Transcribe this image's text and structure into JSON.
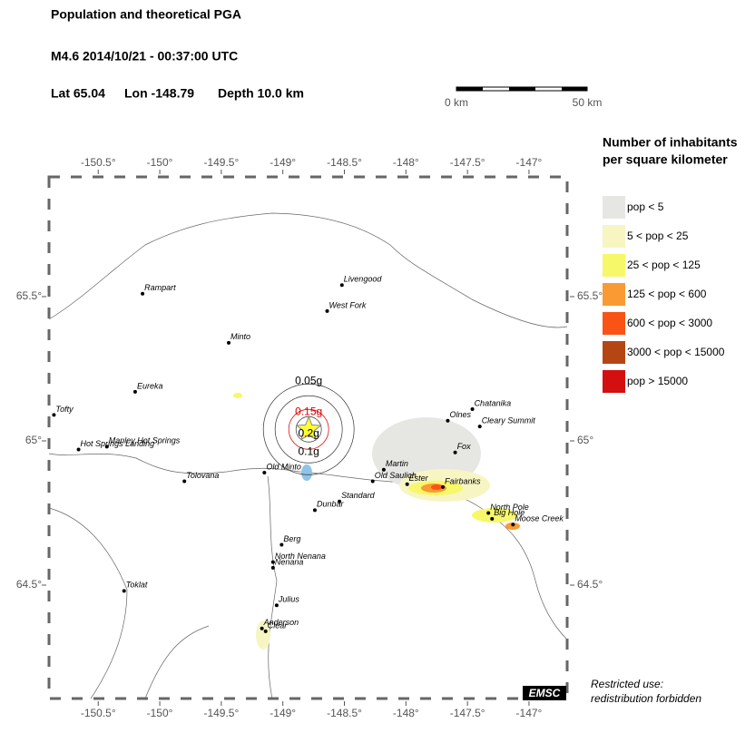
{
  "header": {
    "title": "Population and theoretical PGA",
    "event": "M4.6  2014/10/21 - 00:37:00 UTC",
    "lat": "Lat 65.04",
    "lon": "Lon -148.79",
    "depth": "Depth  10.0 km"
  },
  "scalebar": {
    "start": "0 km",
    "end": "50 km"
  },
  "map": {
    "xlim": [
      -150.9,
      -146.69
    ],
    "ylim": [
      64.107,
      65.915
    ],
    "xticks": [
      {
        "value": -150.5,
        "label": "-150.5°"
      },
      {
        "value": -150,
        "label": "-150°"
      },
      {
        "value": -149.5,
        "label": "-149.5°"
      },
      {
        "value": -149,
        "label": "-149°"
      },
      {
        "value": -148.5,
        "label": "-148.5°"
      },
      {
        "value": -148,
        "label": "-148°"
      },
      {
        "value": -147.5,
        "label": "-147.5°"
      },
      {
        "value": -147,
        "label": "-147°"
      }
    ],
    "yticks": [
      {
        "value": 65.5,
        "label": "65.5°"
      },
      {
        "value": 65,
        "label": "65°"
      },
      {
        "value": 64.5,
        "label": "64.5°"
      }
    ],
    "epicenter": {
      "lon": -148.79,
      "lat": 65.04
    },
    "pga_labels": [
      "0.05g",
      "0.15g",
      "0.2g",
      "0.1g"
    ],
    "towns": [
      {
        "name": "Rampart",
        "lon": -150.14,
        "lat": 65.51
      },
      {
        "name": "Livengood",
        "lon": -148.52,
        "lat": 65.54
      },
      {
        "name": "West Fork",
        "lon": -148.64,
        "lat": 65.45
      },
      {
        "name": "Minto",
        "lon": -149.44,
        "lat": 65.34
      },
      {
        "name": "Eureka",
        "lon": -150.2,
        "lat": 65.17
      },
      {
        "name": "Tofty",
        "lon": -150.86,
        "lat": 65.09
      },
      {
        "name": "Manley Hot Springs",
        "lon": -150.43,
        "lat": 64.98
      },
      {
        "name": "Hot Springs Landing",
        "lon": -150.66,
        "lat": 64.97
      },
      {
        "name": "Tolovana",
        "lon": -149.8,
        "lat": 64.86
      },
      {
        "name": "Old Minto",
        "lon": -149.15,
        "lat": 64.89
      },
      {
        "name": "Chatanika",
        "lon": -147.46,
        "lat": 65.11
      },
      {
        "name": "Olnes",
        "lon": -147.66,
        "lat": 65.07
      },
      {
        "name": "Cleary Summit",
        "lon": -147.4,
        "lat": 65.05
      },
      {
        "name": "Fox",
        "lon": -147.6,
        "lat": 64.96
      },
      {
        "name": "Martin",
        "lon": -148.18,
        "lat": 64.9
      },
      {
        "name": "Old Saulich",
        "lon": -148.27,
        "lat": 64.86
      },
      {
        "name": "Ester",
        "lon": -147.99,
        "lat": 64.85
      },
      {
        "name": "Fairbanks",
        "lon": -147.7,
        "lat": 64.84
      },
      {
        "name": "Standard",
        "lon": -148.54,
        "lat": 64.79
      },
      {
        "name": "Dunbar",
        "lon": -148.74,
        "lat": 64.76
      },
      {
        "name": "North Pole",
        "lon": -147.33,
        "lat": 64.75
      },
      {
        "name": "Big Hole",
        "lon": -147.3,
        "lat": 64.73
      },
      {
        "name": "Moose Creek",
        "lon": -147.13,
        "lat": 64.71
      },
      {
        "name": "Berg",
        "lon": -149.01,
        "lat": 64.64
      },
      {
        "name": "North Nenana",
        "lon": -149.08,
        "lat": 64.58
      },
      {
        "name": "Nenana",
        "lon": -149.08,
        "lat": 64.56
      },
      {
        "name": "Toklat",
        "lon": -150.29,
        "lat": 64.48
      },
      {
        "name": "Julius",
        "lon": -149.05,
        "lat": 64.43
      },
      {
        "name": "Anderson",
        "lon": -149.17,
        "lat": 64.35
      },
      {
        "name": "Clear",
        "lon": -149.14,
        "lat": 64.34
      }
    ]
  },
  "legend": {
    "title": [
      "Number of inhabitants",
      "per square kilometer"
    ],
    "items": [
      {
        "label": "pop < 5",
        "color": "#e6e6e3"
      },
      {
        "label": "5 < pop < 25",
        "color": "#f7f5c2"
      },
      {
        "label": "25 < pop < 125",
        "color": "#f7f76a"
      },
      {
        "label": "125 < pop < 600",
        "color": "#f99a33"
      },
      {
        "label": "600 < pop < 3000",
        "color": "#f95316"
      },
      {
        "label": "3000 < pop < 15000",
        "color": "#b54614"
      },
      {
        "label": "pop > 15000",
        "color": "#d30f0f"
      }
    ]
  },
  "credit": "EMSC",
  "notice": [
    "Restricted use:",
    "redistribution forbidden"
  ]
}
